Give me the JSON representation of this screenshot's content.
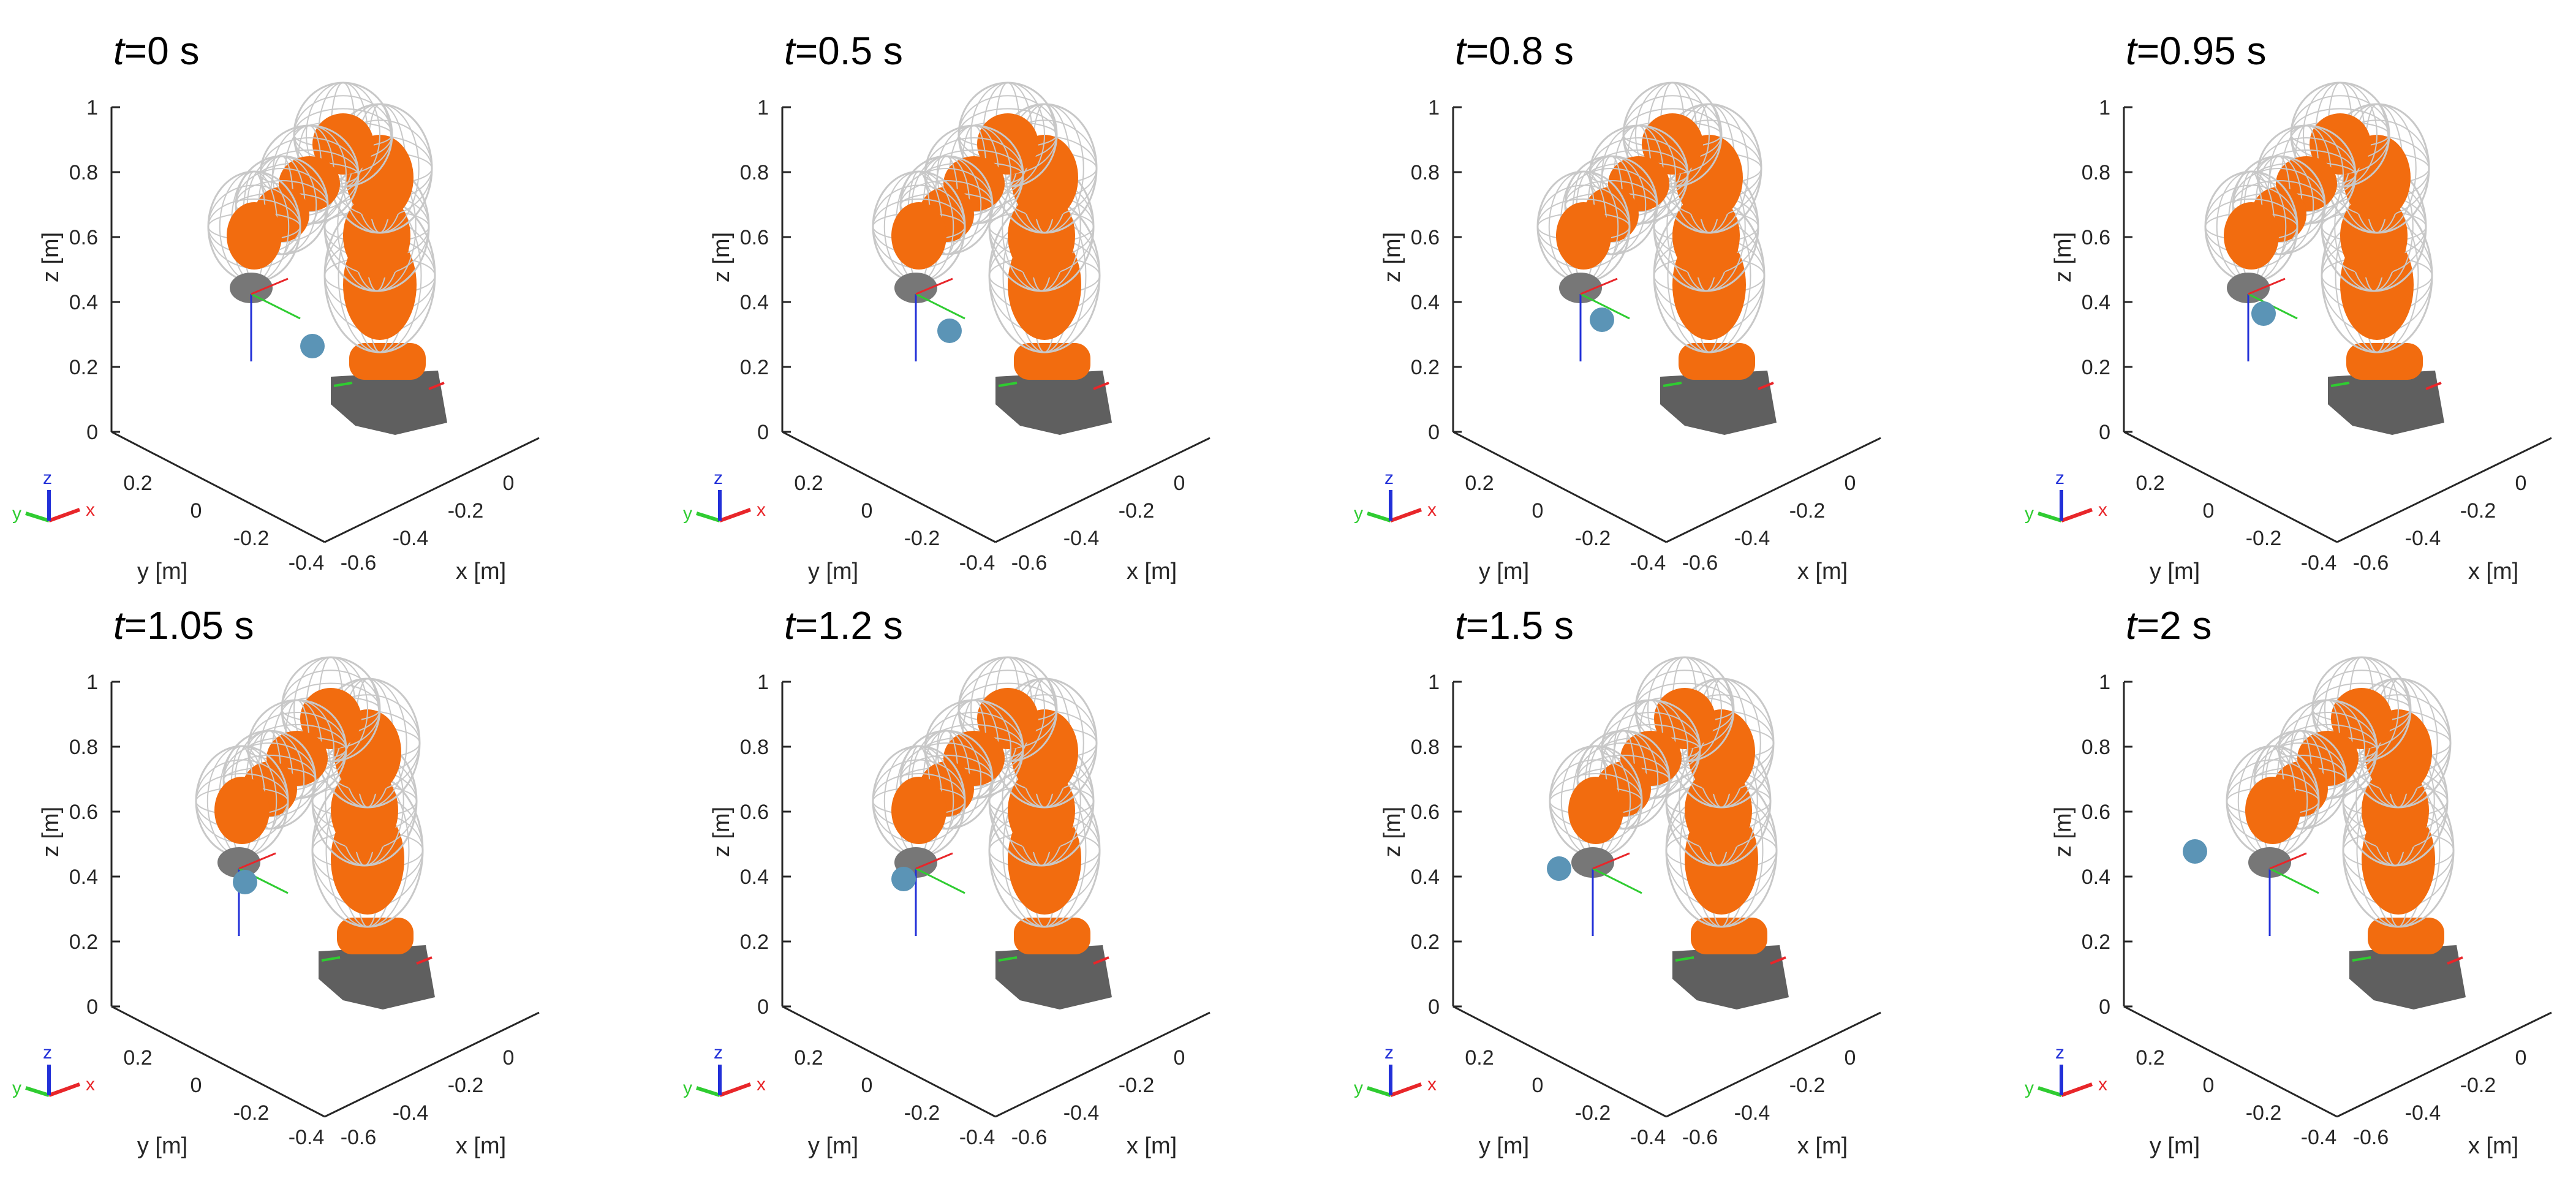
{
  "axes": {
    "x_label": "x [m]",
    "y_label": "y [m]",
    "z_label": "z [m]",
    "z_ticks": [
      "0",
      "0.2",
      "0.4",
      "0.6",
      "0.8",
      "1"
    ],
    "y_ticks": [
      "0.2",
      "0",
      "-0.2",
      "-0.4"
    ],
    "x_ticks": [
      "-0.6",
      "-0.4",
      "-0.2",
      "0"
    ]
  },
  "triad": {
    "x": "x",
    "y": "y",
    "z": "z"
  },
  "colors": {
    "robot_link": "#f26c0f",
    "robot_base": "#5f5f5f",
    "wireframe": "#c8c8c8",
    "ball": "#5b94b6",
    "axis_x": "#e8262a",
    "axis_y": "#2fcc31",
    "axis_z": "#2230d8"
  },
  "panels": [
    {
      "time_var": "t",
      "time_value": "=0 s"
    },
    {
      "time_var": "t",
      "time_value": "=0.5 s"
    },
    {
      "time_var": "t",
      "time_value": "=0.8 s"
    },
    {
      "time_var": "t",
      "time_value": "=0.95 s"
    },
    {
      "time_var": "t",
      "time_value": "=1.05 s"
    },
    {
      "time_var": "t",
      "time_value": "=1.2 s"
    },
    {
      "time_var": "t",
      "time_value": "=1.5 s"
    },
    {
      "time_var": "t",
      "time_value": "=2 s"
    }
  ]
}
